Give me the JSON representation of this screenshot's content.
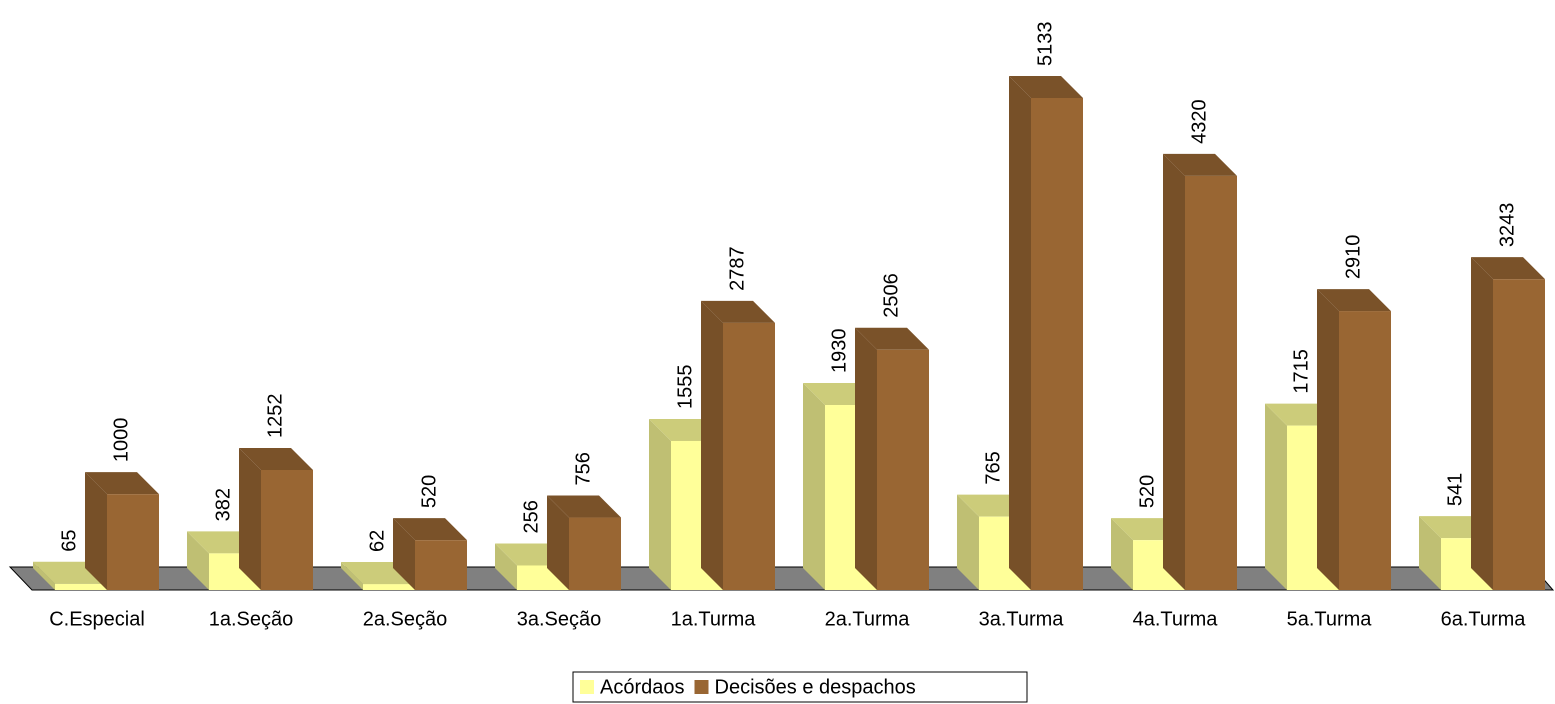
{
  "chart_data": {
    "type": "bar",
    "categories": [
      "C.Especial",
      "1a.Seção",
      "2a.Seção",
      "3a.Seção",
      "1a.Turma",
      "2a.Turma",
      "3a.Turma",
      "4a.Turma",
      "5a.Turma",
      "6a.Turma"
    ],
    "series": [
      {
        "name": "Acórdaos",
        "color": "#ffff99",
        "values": [
          65,
          382,
          62,
          256,
          1555,
          1930,
          765,
          520,
          1715,
          541
        ]
      },
      {
        "name": "Decisões e despachos",
        "color": "#996633",
        "values": [
          1000,
          1252,
          520,
          756,
          2787,
          2506,
          5133,
          4320,
          2910,
          3243
        ]
      }
    ],
    "legend": "bottom"
  }
}
